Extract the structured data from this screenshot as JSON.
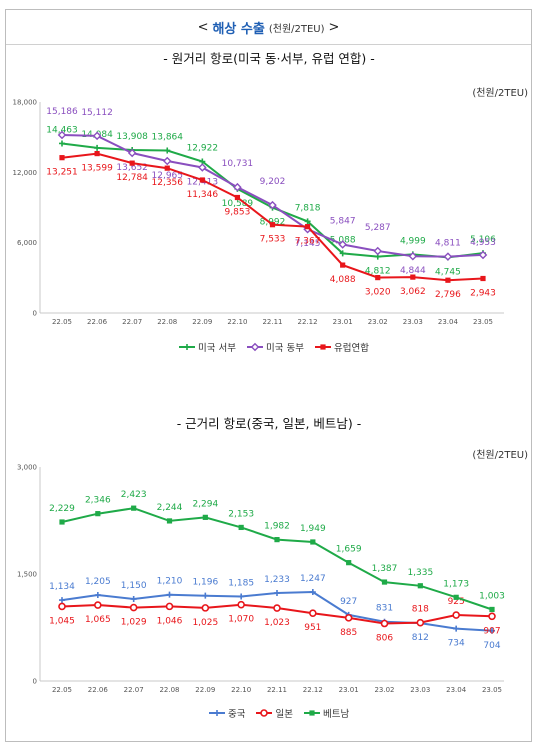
{
  "header": {
    "prefix": "<",
    "title": "해상 수출",
    "unit": "(천원/2TEU)",
    "suffix": ">"
  },
  "chart_data": [
    {
      "type": "line",
      "title": "- 원거리 항로(미국 동·서부, 유럽 연합) -",
      "unit": "(천원/2TEU)",
      "categories": [
        "22.05",
        "22.06",
        "22.07",
        "22.08",
        "22.09",
        "22.10",
        "22.11",
        "22.12",
        "23.01",
        "23.02",
        "23.03",
        "23.04",
        "23.05"
      ],
      "ylim": [
        0,
        18000
      ],
      "yticks": [
        "0",
        "6,000",
        "12,000",
        "18,000"
      ],
      "series": [
        {
          "name": "미국 서부",
          "color": "#1faa48",
          "marker": "cross",
          "values": [
            14463,
            14084,
            13908,
            13864,
            12922,
            10589,
            8992,
            7818,
            5088,
            4812,
            4999,
            4745,
            5106
          ],
          "labels": [
            "14,463",
            "14,084",
            "13,908",
            "13,864",
            "12,922",
            "10,589",
            "8,992",
            "7,818",
            "5,088",
            "4,812",
            "4,999",
            "4,745",
            "5,106"
          ]
        },
        {
          "name": "미국 동부",
          "color": "#8a4fbf",
          "marker": "diamond",
          "values": [
            15186,
            15112,
            13652,
            12965,
            12413,
            10731,
            9202,
            7145,
            5847,
            5287,
            4844,
            4811,
            4953
          ],
          "labels": [
            "15,186",
            "15,112",
            "13,652",
            "12,965",
            "12,413",
            "10,731",
            "9,202",
            "7,145",
            "5,847",
            "5,287",
            "4,844",
            "4,811",
            "4,953"
          ]
        },
        {
          "name": "유럽연합",
          "color": "#e8161b",
          "marker": "square",
          "values": [
            13251,
            13599,
            12784,
            12356,
            11346,
            9853,
            7533,
            7367,
            4088,
            3020,
            3062,
            2796,
            2943
          ],
          "labels": [
            "13,251",
            "13,599",
            "12,784",
            "12,356",
            "11,346",
            "9,853",
            "7,533",
            "7,367",
            "4,088",
            "3,020",
            "3,062",
            "2,796",
            "2,943"
          ]
        }
      ]
    },
    {
      "type": "line",
      "title": "- 근거리 항로(중국, 일본, 베트남) -",
      "unit": "(천원/2TEU)",
      "categories": [
        "22.05",
        "22.06",
        "22.07",
        "22.08",
        "22.09",
        "22.10",
        "22.11",
        "22.12",
        "23.01",
        "23.02",
        "23.03",
        "23.04",
        "23.05"
      ],
      "ylim": [
        0,
        3000
      ],
      "yticks": [
        "0",
        "1,500",
        "3,000"
      ],
      "series": [
        {
          "name": "중국",
          "color": "#4a7bd0",
          "marker": "cross",
          "values": [
            1134,
            1205,
            1150,
            1210,
            1196,
            1185,
            1233,
            1247,
            927,
            831,
            812,
            734,
            704
          ],
          "labels": [
            "1,134",
            "1,205",
            "1,150",
            "1,210",
            "1,196",
            "1,185",
            "1,233",
            "1,247",
            "927",
            "831",
            "812",
            "734",
            "704"
          ]
        },
        {
          "name": "일본",
          "color": "#e8161b",
          "marker": "circle",
          "values": [
            1045,
            1065,
            1029,
            1046,
            1025,
            1070,
            1023,
            951,
            885,
            806,
            818,
            925,
            907
          ],
          "labels": [
            "1,045",
            "1,065",
            "1,029",
            "1,046",
            "1,025",
            "1,070",
            "1,023",
            "951",
            "885",
            "806",
            "818",
            "925",
            "907"
          ]
        },
        {
          "name": "베트남",
          "color": "#1faa48",
          "marker": "square",
          "values": [
            2229,
            2346,
            2423,
            2244,
            2294,
            2153,
            1982,
            1949,
            1659,
            1387,
            1335,
            1173,
            1003
          ],
          "labels": [
            "2,229",
            "2,346",
            "2,423",
            "2,244",
            "2,294",
            "2,153",
            "1,982",
            "1,949",
            "1,659",
            "1,387",
            "1,335",
            "1,173",
            "1,003"
          ]
        }
      ]
    }
  ]
}
